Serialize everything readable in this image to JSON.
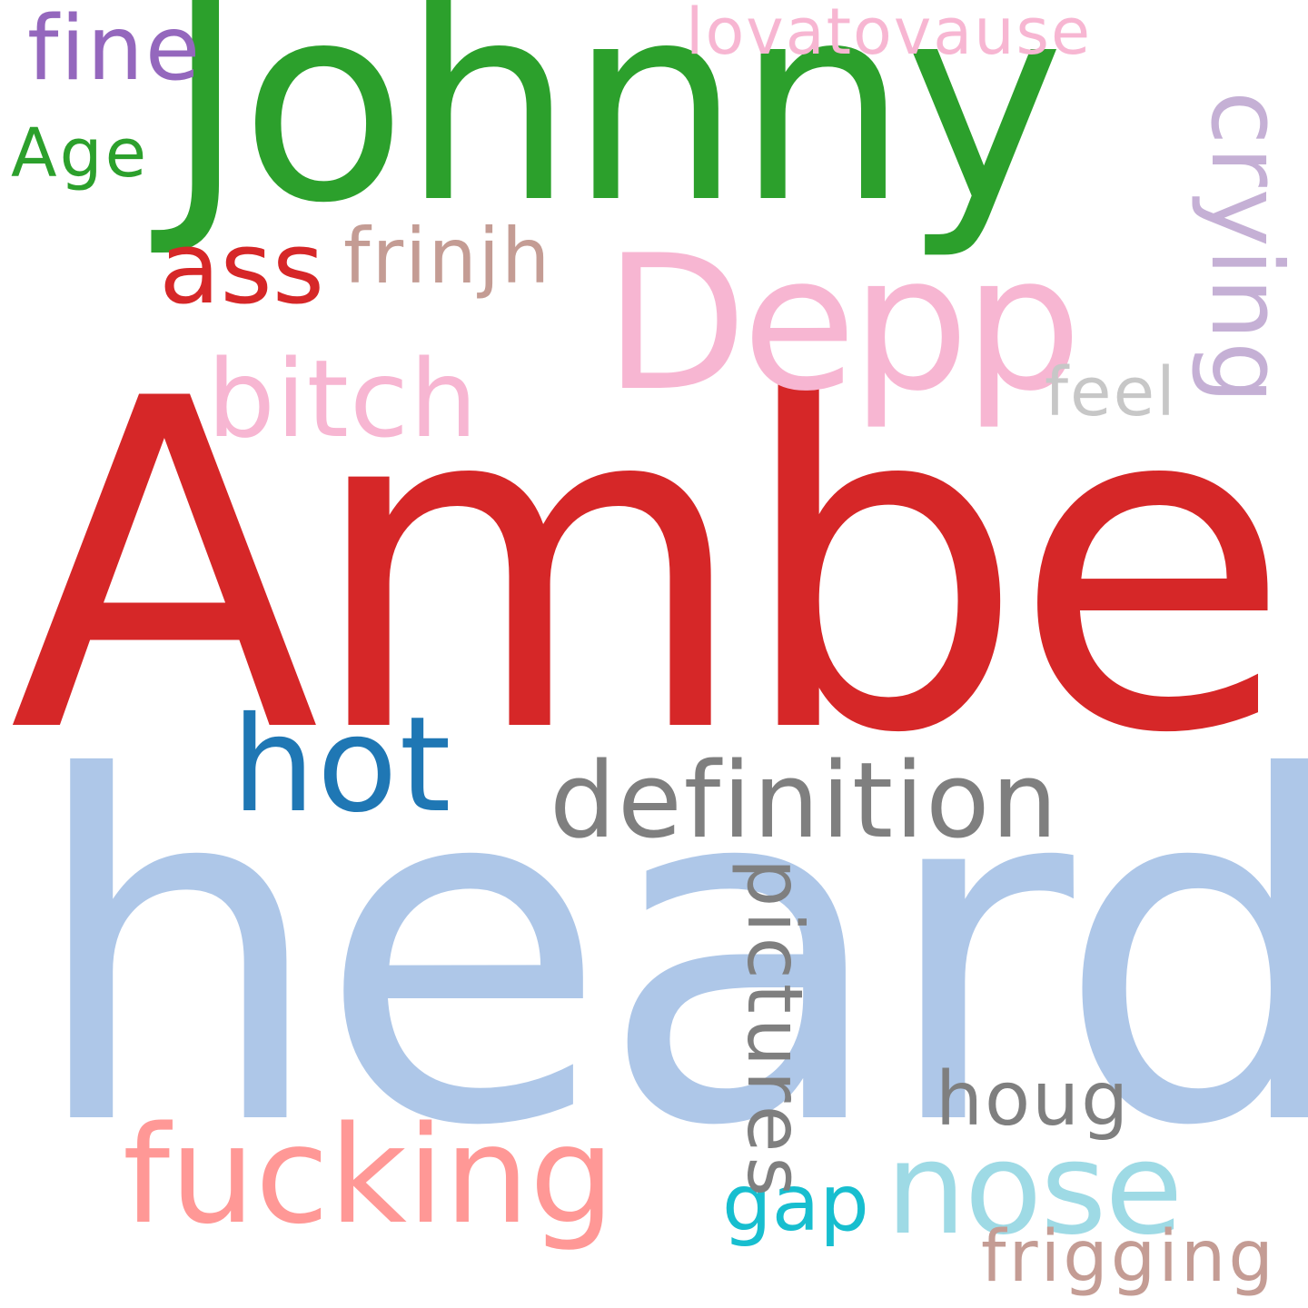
{
  "words": [
    {
      "text": "Amber",
      "color": "#d62728"
    },
    {
      "text": "heard",
      "color": "#aec7e8"
    },
    {
      "text": "Johnny",
      "color": "#2ca02c"
    },
    {
      "text": "Depp",
      "color": "#f7b6d2"
    },
    {
      "text": "definition",
      "color": "#7f7f7f"
    },
    {
      "text": "hot",
      "color": "#1f77b4"
    },
    {
      "text": "fucking",
      "color": "#ff9896"
    },
    {
      "text": "nose",
      "color": "#9edae5"
    },
    {
      "text": "bitch",
      "color": "#f7b6d2"
    },
    {
      "text": "ass",
      "color": "#d62728"
    },
    {
      "text": "fine",
      "color": "#9467bd"
    },
    {
      "text": "frinjh",
      "color": "#c49c94"
    },
    {
      "text": "lovatovause",
      "color": "#f7b6d2"
    },
    {
      "text": "Age",
      "color": "#2ca02c"
    },
    {
      "text": "feel",
      "color": "#c7c7c7"
    },
    {
      "text": "houg",
      "color": "#7f7f7f"
    },
    {
      "text": "frigging",
      "color": "#c49c94"
    },
    {
      "text": "gap",
      "color": "#17becf"
    },
    {
      "text": "crying",
      "color": "#c5b0d5"
    },
    {
      "text": "pictures",
      "color": "#7f7f7f"
    }
  ]
}
